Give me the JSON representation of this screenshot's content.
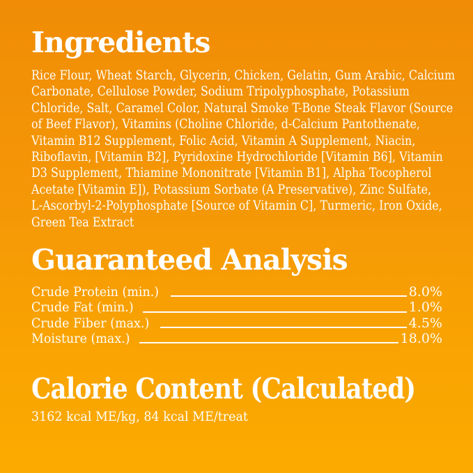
{
  "background": {
    "gradient_top": "#f08c06",
    "gradient_middle": "#f79e00",
    "gradient_bottom": "#fcaa00",
    "text_color": "#ffffff"
  },
  "ingredients": {
    "heading": "Ingredients",
    "lines": [
      "Rice Flour, Wheat Starch, Glycerin, Chicken, Gelatin, Gum Arabic, Calcium",
      "Carbonate, Cellulose Powder, Sodium Tripolyphosphate, Potassium",
      "Chloride, Salt, Caramel Color, Natural Smoke T-Bone Steak Flavor (Source",
      "of Beef Flavor), Vitamins (Choline Chloride, d-Calcium Pantothenate,",
      "Vitamin B12 Supplement, Folic Acid, Vitamin A Supplement, Niacin,",
      "Riboflavin, [Vitamin B2], Pyridoxine Hydrochloride [Vitamin B6], Vitamin",
      "D3 Supplement, Thiamine Mononitrate [Vitamin B1], Alpha Tocopherol",
      "Acetate [Vitamin E]), Potassium Sorbate (A Preservative), Zinc Sulfate,",
      "L-Ascorbyl-2-Polyphosphate [Source of Vitamin C], Turmeric, Iron Oxide,",
      "Green Tea Extract"
    ]
  },
  "guaranteed_analysis": {
    "heading": "Guaranteed Analysis",
    "rows": [
      {
        "label": "Crude Protein (min.)",
        "value": "8.0%"
      },
      {
        "label": "Crude Fat (min.)",
        "value": "1.0%"
      },
      {
        "label": "Crude Fiber (max.)",
        "value": "4.5%"
      },
      {
        "label": "Moisture (max.)",
        "value": "18.0%"
      }
    ]
  },
  "calorie_content": {
    "heading": "Calorie Content (Calculated)",
    "value": "3162 kcal ME/kg, 84 kcal ME/treat"
  }
}
